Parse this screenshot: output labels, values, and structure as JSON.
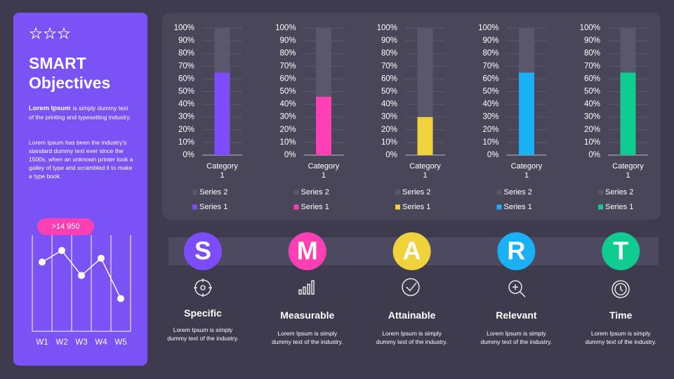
{
  "sidebar": {
    "title": "SMART Objectives",
    "intro_bold": "Lorem Ipsum",
    "intro_rest": "is simply dummy text of the printing and typesetting industry.",
    "paragraph": "Lorem Ipsum has been the industry's standard dummy text ever since the 1500s, when an unknown printer took a galley of type and scrambled it to make a type book."
  },
  "chart_data": [
    {
      "type": "stacked-bar",
      "categories": [
        "Category 1"
      ],
      "series": [
        {
          "name": "Series 1",
          "color": "#7b4dff",
          "values": [
            65
          ]
        },
        {
          "name": "Series 2",
          "color": "#5a566b",
          "values": [
            35
          ]
        }
      ],
      "ylim": [
        0,
        100
      ],
      "yticks": [
        {
          "value": 0,
          "label": "0%"
        },
        {
          "value": 10,
          "label": "10%"
        },
        {
          "value": 20,
          "label": "20%"
        },
        {
          "value": 30,
          "label": "30%"
        },
        {
          "value": 40,
          "label": "40%"
        },
        {
          "value": 50,
          "label": "50%"
        },
        {
          "value": 60,
          "label": "60%"
        },
        {
          "value": 70,
          "label": "70%"
        },
        {
          "value": 80,
          "label": "80%"
        },
        {
          "value": 90,
          "label": "90%"
        },
        {
          "value": 100,
          "label": "100%"
        }
      ],
      "grid": true
    },
    {
      "type": "stacked-bar",
      "categories": [
        "Category 1"
      ],
      "series": [
        {
          "name": "Series 1",
          "color": "#ff3fb4",
          "values": [
            46
          ]
        },
        {
          "name": "Series 2",
          "color": "#5a566b",
          "values": [
            54
          ]
        }
      ],
      "ylim": [
        0,
        100
      ],
      "yticks": [
        {
          "value": 0,
          "label": "0%"
        },
        {
          "value": 10,
          "label": "10%"
        },
        {
          "value": 20,
          "label": "20%"
        },
        {
          "value": 30,
          "label": "30%"
        },
        {
          "value": 40,
          "label": "40%"
        },
        {
          "value": 50,
          "label": "50%"
        },
        {
          "value": 60,
          "label": "60%"
        },
        {
          "value": 70,
          "label": "70%"
        },
        {
          "value": 80,
          "label": "80%"
        },
        {
          "value": 90,
          "label": "90%"
        },
        {
          "value": 100,
          "label": "100%"
        }
      ],
      "grid": true
    },
    {
      "type": "stacked-bar",
      "categories": [
        "Category 1"
      ],
      "series": [
        {
          "name": "Series 1",
          "color": "#f0d23c",
          "values": [
            30
          ]
        },
        {
          "name": "Series 2",
          "color": "#5a566b",
          "values": [
            70
          ]
        }
      ],
      "ylim": [
        0,
        100
      ],
      "yticks": [
        {
          "value": 0,
          "label": "0%"
        },
        {
          "value": 10,
          "label": "10%"
        },
        {
          "value": 20,
          "label": "20%"
        },
        {
          "value": 30,
          "label": "30%"
        },
        {
          "value": 40,
          "label": "40%"
        },
        {
          "value": 50,
          "label": "50%"
        },
        {
          "value": 60,
          "label": "60%"
        },
        {
          "value": 70,
          "label": "70%"
        },
        {
          "value": 80,
          "label": "80%"
        },
        {
          "value": 90,
          "label": "90%"
        },
        {
          "value": 100,
          "label": "100%"
        }
      ],
      "grid": true
    },
    {
      "type": "stacked-bar",
      "categories": [
        "Category 1"
      ],
      "series": [
        {
          "name": "Series 1",
          "color": "#1ab0f5",
          "values": [
            65
          ]
        },
        {
          "name": "Series 2",
          "color": "#5a566b",
          "values": [
            35
          ]
        }
      ],
      "ylim": [
        0,
        100
      ],
      "yticks": [
        {
          "value": 0,
          "label": "0%"
        },
        {
          "value": 10,
          "label": "10%"
        },
        {
          "value": 20,
          "label": "20%"
        },
        {
          "value": 30,
          "label": "30%"
        },
        {
          "value": 40,
          "label": "40%"
        },
        {
          "value": 50,
          "label": "50%"
        },
        {
          "value": 60,
          "label": "60%"
        },
        {
          "value": 70,
          "label": "70%"
        },
        {
          "value": 80,
          "label": "80%"
        },
        {
          "value": 90,
          "label": "90%"
        },
        {
          "value": 100,
          "label": "100%"
        }
      ],
      "grid": true
    },
    {
      "type": "stacked-bar",
      "categories": [
        "Category 1"
      ],
      "series": [
        {
          "name": "Series 1",
          "color": "#10cc90",
          "values": [
            65
          ]
        },
        {
          "name": "Series 2",
          "color": "#5a566b",
          "values": [
            35
          ]
        }
      ],
      "ylim": [
        0,
        100
      ],
      "yticks": [
        {
          "value": 0,
          "label": "0%"
        },
        {
          "value": 10,
          "label": "10%"
        },
        {
          "value": 20,
          "label": "20%"
        },
        {
          "value": 30,
          "label": "30%"
        },
        {
          "value": 40,
          "label": "40%"
        },
        {
          "value": 50,
          "label": "50%"
        },
        {
          "value": 60,
          "label": "60%"
        },
        {
          "value": 70,
          "label": "70%"
        },
        {
          "value": 80,
          "label": "80%"
        },
        {
          "value": 90,
          "label": "90%"
        },
        {
          "value": 100,
          "label": "100%"
        }
      ],
      "grid": true
    },
    {
      "type": "line",
      "annotation": ">14 950",
      "categories": [
        "W1",
        "W2",
        "W3",
        "W4",
        "W5"
      ],
      "values": [
        3.6,
        4.2,
        2.9,
        3.8,
        1.7
      ],
      "color": "#ffffff",
      "ylim": [
        0,
        5
      ]
    }
  ],
  "smart": [
    {
      "letter": "S",
      "title": "Specific",
      "text": "Lorem Ipsum is simply dummy text of the industry.",
      "color": "#7b4dff"
    },
    {
      "letter": "M",
      "title": "Measurable",
      "text": "Lorem Ipsum is simply dummy text of the industry.",
      "color": "#ff3fb4"
    },
    {
      "letter": "A",
      "title": "Attainable",
      "text": "Lorem Ipsum is simply dummy text of the industry.",
      "color": "#f0d23c"
    },
    {
      "letter": "R",
      "title": "Relevant",
      "text": "Lorem Ipsum is simply dummy text of the industry.",
      "color": "#1ab0f5"
    },
    {
      "letter": "T",
      "title": "Time",
      "text": "Lorem Ipsum is simply dummy text of the industry.",
      "color": "#10cc90"
    }
  ]
}
